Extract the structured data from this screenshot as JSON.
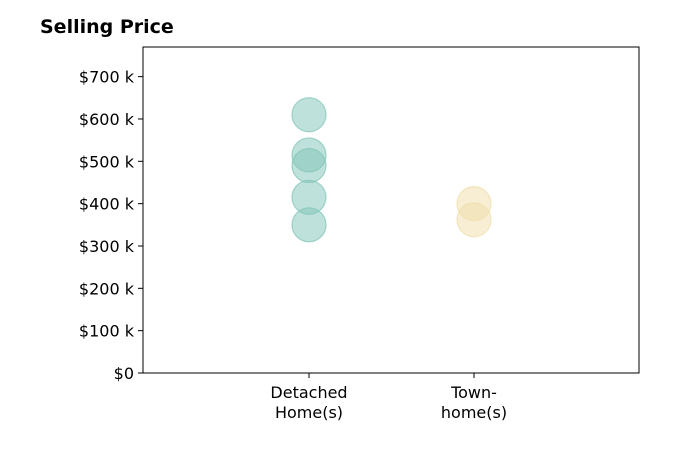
{
  "chart_data": {
    "type": "scatter",
    "title": "Selling Price",
    "xlabel": "",
    "ylabel": "",
    "categories": [
      [
        "Detached",
        "Home(s)"
      ],
      [
        "Town-",
        "home(s)"
      ]
    ],
    "series": [
      {
        "category": 0,
        "color": "#7fc4b8",
        "values": [
          610,
          515,
          490,
          415,
          350
        ]
      },
      {
        "category": 1,
        "color": "#f0ddaa",
        "values": [
          400,
          362
        ]
      }
    ],
    "ylim": [
      0,
      770
    ],
    "yticks": [
      0,
      100,
      200,
      300,
      400,
      500,
      600,
      700
    ],
    "ytick_labels": [
      "$0",
      "$100 k",
      "$200 k",
      "$300 k",
      "$400 k",
      "$500 k",
      "$600 k",
      "$700 k"
    ],
    "grid": false,
    "legend": "none"
  }
}
